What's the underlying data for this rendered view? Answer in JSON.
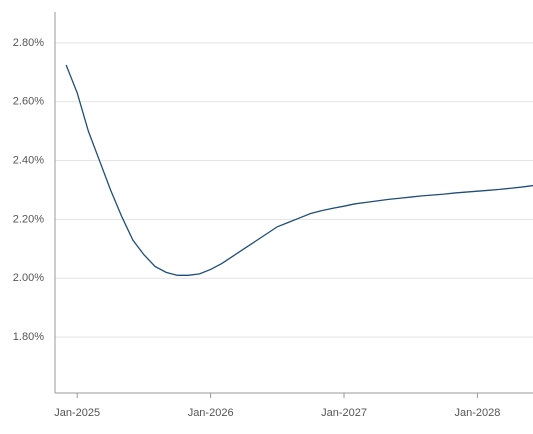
{
  "chart_data": {
    "type": "line",
    "x": [
      "2024-12",
      "2025-01",
      "2025-02",
      "2025-03",
      "2025-04",
      "2025-05",
      "2025-06",
      "2025-07",
      "2025-08",
      "2025-09",
      "2025-10",
      "2025-11",
      "2025-12",
      "2026-01",
      "2026-02",
      "2026-03",
      "2026-04",
      "2026-05",
      "2026-06",
      "2026-07",
      "2026-08",
      "2026-09",
      "2026-10",
      "2026-11",
      "2026-12",
      "2027-01",
      "2027-02",
      "2027-03",
      "2027-04",
      "2027-05",
      "2027-06",
      "2027-07",
      "2027-08",
      "2027-09",
      "2027-10",
      "2027-11",
      "2027-12",
      "2028-01",
      "2028-02",
      "2028-03",
      "2028-04",
      "2028-05",
      "2028-06"
    ],
    "series": [
      {
        "color": "#1f4e79",
        "values": [
          2.725,
          2.63,
          2.5,
          2.4,
          2.3,
          2.21,
          2.13,
          2.08,
          2.04,
          2.02,
          2.01,
          2.01,
          2.015,
          2.03,
          2.05,
          2.075,
          2.1,
          2.125,
          2.15,
          2.175,
          2.19,
          2.205,
          2.22,
          2.23,
          2.238,
          2.245,
          2.253,
          2.258,
          2.263,
          2.268,
          2.272,
          2.276,
          2.28,
          2.283,
          2.286,
          2.29,
          2.293,
          2.296,
          2.299,
          2.302,
          2.306,
          2.31,
          2.315
        ]
      }
    ],
    "xlim": [
      "2024-11",
      "2028-06"
    ],
    "xticks": [
      {
        "value": "2025-01",
        "label": "Jan-2025"
      },
      {
        "value": "2026-01",
        "label": "Jan-2026"
      },
      {
        "value": "2027-01",
        "label": "Jan-2027"
      },
      {
        "value": "2028-01",
        "label": "Jan-2028"
      }
    ],
    "ylim": [
      1.61,
      2.905
    ],
    "yticks": [
      {
        "value": 1.8,
        "label": "1.80%"
      },
      {
        "value": 2.0,
        "label": "2.00%"
      },
      {
        "value": 2.2,
        "label": "2.20%"
      },
      {
        "value": 2.4,
        "label": "2.40%"
      },
      {
        "value": 2.6,
        "label": "2.60%"
      },
      {
        "value": 2.8,
        "label": "2.80%"
      }
    ],
    "grid": true
  }
}
